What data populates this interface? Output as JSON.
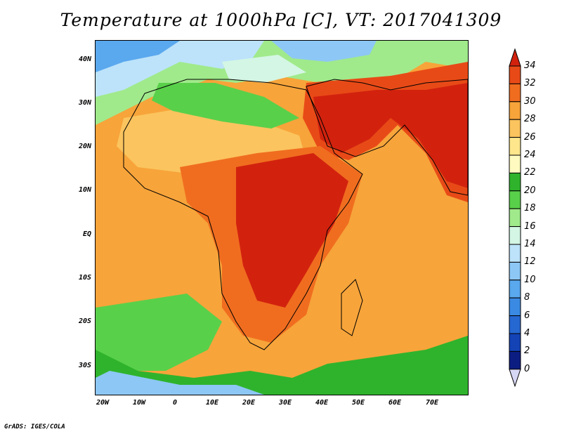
{
  "title": "Temperature at 1000hPa [C], VT: 2017041309",
  "credit": "GrADS: IGES/COLA",
  "map": {
    "lat_labels": [
      "40N",
      "30N",
      "20N",
      "10N",
      "EQ",
      "10S",
      "20S",
      "30S"
    ],
    "lon_labels": [
      "20W",
      "10W",
      "0",
      "10E",
      "20E",
      "30E",
      "40E",
      "50E",
      "60E",
      "70E"
    ],
    "lon_range": [
      -21,
      80
    ],
    "lat_range": [
      -37,
      45
    ],
    "projection": "cylindrical",
    "field": "temperature at 1000hPa"
  },
  "colorbar": {
    "labels": [
      "34",
      "32",
      "30",
      "28",
      "26",
      "24",
      "22",
      "20",
      "18",
      "16",
      "14",
      "12",
      "10",
      "8",
      "6",
      "4",
      "2",
      "0"
    ],
    "colors_top_to_bottom": [
      "#d2220e",
      "#e84a17",
      "#f06d1f",
      "#f7a43a",
      "#fbc45e",
      "#fde68c",
      "#fffbc0",
      "#2fb32c",
      "#59d04a",
      "#a0ea8b",
      "#d4f6e4",
      "#bce3fa",
      "#8dc7f5",
      "#5aa8ee",
      "#3a8ae3",
      "#2668d2",
      "#1443b6",
      "#0c1d82",
      "#d6d6f5"
    ],
    "min": 0,
    "max": 34,
    "step": 2,
    "units": "C"
  }
}
